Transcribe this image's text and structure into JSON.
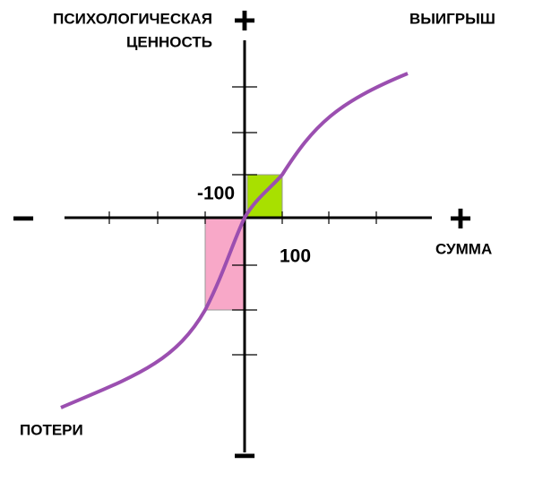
{
  "y_axis": {
    "label_line1": "ПСИХОЛОГИЧЕСКАЯ",
    "label_line2": "ЦЕННОСТЬ",
    "plus": "+",
    "minus": "−"
  },
  "x_axis": {
    "label": "СУММА",
    "plus": "+",
    "minus": "−"
  },
  "gains_label": "ВЫИГРЫШ",
  "losses_label": "ПОТЕРИ",
  "marker_negative": "-100",
  "marker_positive": "100"
}
